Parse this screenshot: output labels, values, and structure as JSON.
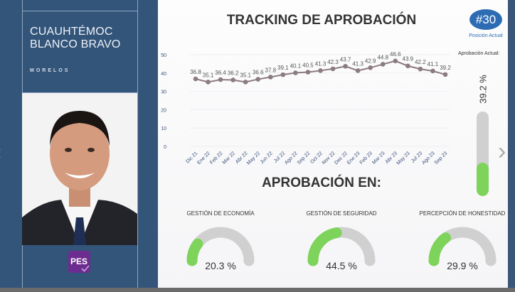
{
  "candidate": {
    "name_line1": "CUAUHTÉMOC",
    "name_line2": "BLANCO BRAVO",
    "state": "MORELOS",
    "party_logo": "PES"
  },
  "header": {
    "title": "TRACKING DE APROBACIÓN",
    "subtitle": "APROBACIÓN EN:"
  },
  "position": {
    "rank": "#30",
    "label": "Posición Actual"
  },
  "current": {
    "label": "Aprobación Actual:",
    "value_text": "39.2 %",
    "value": 39.2
  },
  "gauges": [
    {
      "label": "GESTIÓN DE ECONOMÍA",
      "value_text": "20.3 %",
      "value": 20.3
    },
    {
      "label": "GESTIÓN DE SEGURIDAD",
      "value_text": "44.5 %",
      "value": 44.5
    },
    {
      "label": "PERCEPCIÓN DE HONESTIDAD",
      "value_text": "29.9 %",
      "value": 29.9
    }
  ],
  "colors": {
    "panel": "#34557a",
    "accent": "#2d6cb3",
    "fill": "#7ed35a",
    "line": "#8c7b80"
  },
  "chart_data": {
    "type": "line",
    "categories": [
      "Dic 21",
      "Ene 22",
      "Feb 22",
      "Mar 22",
      "Abr 22",
      "May 22",
      "Jun 22",
      "Jul 22",
      "Ago 22",
      "Sep 22",
      "Oct 22",
      "Nov 22",
      "Dec 22",
      "Ene 23",
      "Feb 23",
      "Mar 23",
      "Abr 23",
      "May 23",
      "Jul 23",
      "Ago 23",
      "Sep 23"
    ],
    "values": [
      36.8,
      35.1,
      36.4,
      36.2,
      35.1,
      36.6,
      37.8,
      39.1,
      40.1,
      40.5,
      41.3,
      42.3,
      43.7,
      41.3,
      42.9,
      44.8,
      46.6,
      43.9,
      42.2,
      41.1,
      39.2
    ],
    "yticks": [
      0,
      10,
      20,
      30,
      40,
      50
    ],
    "ylim": [
      0,
      50
    ],
    "grid": true,
    "title": "TRACKING DE APROBACIÓN"
  }
}
